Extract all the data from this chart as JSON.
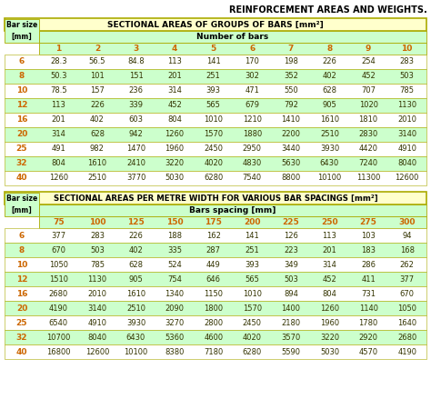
{
  "title_text": "REINFORCEMENT AREAS AND WEIGHTS.",
  "table1_title": "SECTIONAL AREAS OF GROUPS OF BARS [mm²]",
  "table1_col_header": "Number of bars",
  "table1_cols": [
    "1",
    "2",
    "3",
    "4",
    "5",
    "6",
    "7",
    "8",
    "9",
    "10"
  ],
  "table1_bar_sizes": [
    "6",
    "8",
    "10",
    "12",
    "16",
    "20",
    "25",
    "32",
    "40"
  ],
  "table1_data": [
    [
      "28.3",
      "56.5",
      "84.8",
      "113",
      "141",
      "170",
      "198",
      "226",
      "254",
      "283"
    ],
    [
      "50.3",
      "101",
      "151",
      "201",
      "251",
      "302",
      "352",
      "402",
      "452",
      "503"
    ],
    [
      "78.5",
      "157",
      "236",
      "314",
      "393",
      "471",
      "550",
      "628",
      "707",
      "785"
    ],
    [
      "113",
      "226",
      "339",
      "452",
      "565",
      "679",
      "792",
      "905",
      "1020",
      "1130"
    ],
    [
      "201",
      "402",
      "603",
      "804",
      "1010",
      "1210",
      "1410",
      "1610",
      "1810",
      "2010"
    ],
    [
      "314",
      "628",
      "942",
      "1260",
      "1570",
      "1880",
      "2200",
      "2510",
      "2830",
      "3140"
    ],
    [
      "491",
      "982",
      "1470",
      "1960",
      "2450",
      "2950",
      "3440",
      "3930",
      "4420",
      "4910"
    ],
    [
      "804",
      "1610",
      "2410",
      "3220",
      "4020",
      "4830",
      "5630",
      "6430",
      "7240",
      "8040"
    ],
    [
      "1260",
      "2510",
      "3770",
      "5030",
      "6280",
      "7540",
      "8800",
      "10100",
      "11300",
      "12600"
    ]
  ],
  "table2_title": "SECTIONAL AREAS PER METRE WIDTH FOR VARIOUS BAR SPACINGS [mm²]",
  "table2_col_header": "Bars spacing [mm]",
  "table2_cols": [
    "75",
    "100",
    "125",
    "150",
    "175",
    "200",
    "225",
    "250",
    "275",
    "300"
  ],
  "table2_bar_sizes": [
    "6",
    "8",
    "10",
    "12",
    "16",
    "20",
    "25",
    "32",
    "40"
  ],
  "table2_data": [
    [
      "377",
      "283",
      "226",
      "188",
      "162",
      "141",
      "126",
      "113",
      "103",
      "94"
    ],
    [
      "670",
      "503",
      "402",
      "335",
      "287",
      "251",
      "223",
      "201",
      "183",
      "168"
    ],
    [
      "1050",
      "785",
      "628",
      "524",
      "449",
      "393",
      "349",
      "314",
      "286",
      "262"
    ],
    [
      "1510",
      "1130",
      "905",
      "754",
      "646",
      "565",
      "503",
      "452",
      "411",
      "377"
    ],
    [
      "2680",
      "2010",
      "1610",
      "1340",
      "1150",
      "1010",
      "894",
      "804",
      "731",
      "670"
    ],
    [
      "4190",
      "3140",
      "2510",
      "2090",
      "1800",
      "1570",
      "1400",
      "1260",
      "1140",
      "1050"
    ],
    [
      "6540",
      "4910",
      "3930",
      "3270",
      "2800",
      "2450",
      "2180",
      "1960",
      "1780",
      "1640"
    ],
    [
      "10700",
      "8040",
      "6430",
      "5360",
      "4600",
      "4020",
      "3570",
      "3220",
      "2920",
      "2680"
    ],
    [
      "16800",
      "12600",
      "10100",
      "8380",
      "7180",
      "6280",
      "5590",
      "5030",
      "4570",
      "4190"
    ]
  ],
  "header_bg": "#ffffcc",
  "col_header_bg": "#ccffcc",
  "row_white_bg": "#ffffff",
  "row_green_bg": "#ccffcc",
  "border_color": "#aaaa00",
  "text_dark": "#333300",
  "header_text_color": "#000000",
  "orange_text": "#cc6600",
  "title_font": 7.0,
  "table_title_font": 6.5,
  "col_header_font": 6.5,
  "num_header_font": 6.5,
  "data_font": 6.0,
  "bar_size_font": 6.5
}
